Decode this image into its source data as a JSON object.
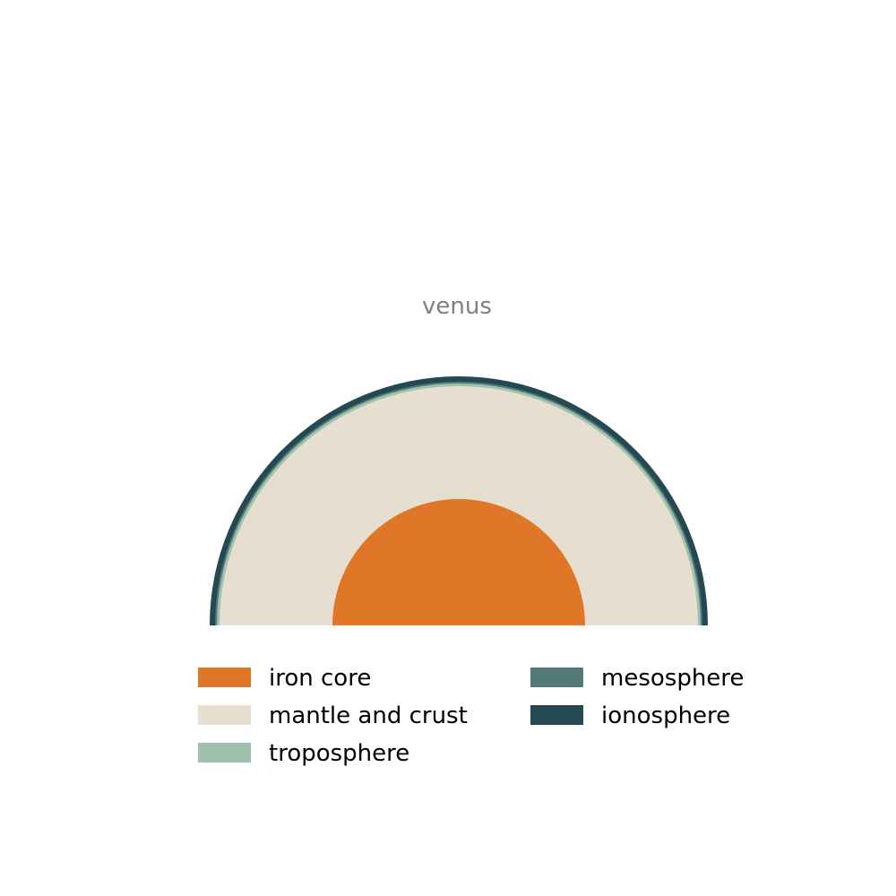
{
  "title": "venus",
  "layers": [
    {
      "name": "iron core",
      "color": "#e07627"
    },
    {
      "name": "mantle and crust",
      "color": "#e6dfd0"
    },
    {
      "name": "troposphere",
      "color": "#9fc2ae"
    },
    {
      "name": "mesosphere",
      "color": "#537a77"
    },
    {
      "name": "ionosphere",
      "color": "#264852"
    }
  ]
}
